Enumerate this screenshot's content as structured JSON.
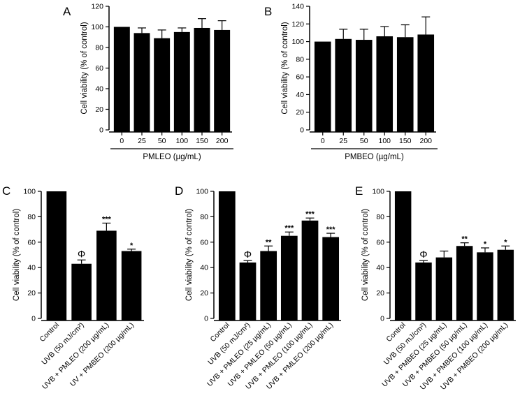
{
  "chart_data": [
    {
      "type": "bar",
      "panel_label": "A",
      "categories": [
        "0",
        "25",
        "50",
        "100",
        "150",
        "200"
      ],
      "values": [
        100,
        94,
        89,
        95,
        99,
        97
      ],
      "errors": [
        0,
        5,
        8,
        4,
        9,
        9
      ],
      "annotations": [
        "",
        "",
        "",
        "",
        "",
        ""
      ],
      "ylabel": "Cell viability (% of control)",
      "xlabel": "PMLEO (µg/mL)",
      "ylim": [
        0,
        120
      ],
      "yticks": [
        0,
        20,
        40,
        60,
        80,
        100,
        120
      ],
      "xlabel_rotated": false
    },
    {
      "type": "bar",
      "panel_label": "B",
      "categories": [
        "0",
        "25",
        "50",
        "100",
        "150",
        "200"
      ],
      "values": [
        100,
        103,
        102,
        106,
        105,
        108
      ],
      "errors": [
        0,
        11,
        12,
        11,
        14,
        20
      ],
      "annotations": [
        "",
        "",
        "",
        "",
        "",
        ""
      ],
      "ylabel": "Cell viability (% of control)",
      "xlabel": "PMBEO (µg/mL)",
      "ylim": [
        0,
        140
      ],
      "yticks": [
        0,
        20,
        40,
        60,
        80,
        100,
        120,
        140
      ],
      "xlabel_rotated": false
    },
    {
      "type": "bar",
      "panel_label": "C",
      "categories": [
        "Control",
        "UVB (50 mJ/cm²)",
        "UVB + PMLEO (200 µg/mL)",
        "UV + PMBEO (200 µg/mL)"
      ],
      "values": [
        100,
        43,
        69,
        53
      ],
      "errors": [
        0,
        3,
        6,
        1.5
      ],
      "annotations": [
        "",
        "Φ",
        "***",
        "*"
      ],
      "ylabel": "Cell viability (% of control)",
      "xlabel": "",
      "ylim": [
        0,
        100
      ],
      "yticks": [
        0,
        20,
        40,
        60,
        80,
        100
      ],
      "xlabel_rotated": true
    },
    {
      "type": "bar",
      "panel_label": "D",
      "categories": [
        "Control",
        "UVB (50 mJ/cm²)",
        "UVB + PMLEO (25 µg/mL)",
        "UVB + PMLEO (50 µg/mL)",
        "UVB + PMLEO (100 µg/mL)",
        "UVB + PMLEO (200 µg/mL)"
      ],
      "values": [
        100,
        44,
        53,
        65,
        77,
        64
      ],
      "errors": [
        0,
        1.5,
        4,
        3,
        2,
        3
      ],
      "annotations": [
        "",
        "Φ",
        "**",
        "***",
        "***",
        "***"
      ],
      "ylabel": "Cell viability (% of control)",
      "xlabel": "",
      "ylim": [
        0,
        100
      ],
      "yticks": [
        0,
        20,
        40,
        60,
        80,
        100
      ],
      "xlabel_rotated": true
    },
    {
      "type": "bar",
      "panel_label": "E",
      "categories": [
        "Control",
        "UVB (50 mJ/cm²)",
        "UVB + PMBEO (25 µg/mL)",
        "UVB + PMBEO (50 µg/mL)",
        "UVB + PMBEO (100 µg/mL)",
        "UVB + PMBEO (200 µg/mL)"
      ],
      "values": [
        100,
        44,
        48,
        57,
        52,
        54
      ],
      "errors": [
        0,
        1.5,
        5,
        2.5,
        3.5,
        3
      ],
      "annotations": [
        "",
        "Φ",
        "",
        "**",
        "*",
        "*"
      ],
      "ylabel": "Cell viability (% of control)",
      "xlabel": "",
      "ylim": [
        0,
        100
      ],
      "yticks": [
        0,
        20,
        40,
        60,
        80,
        100
      ],
      "xlabel_rotated": true
    }
  ]
}
